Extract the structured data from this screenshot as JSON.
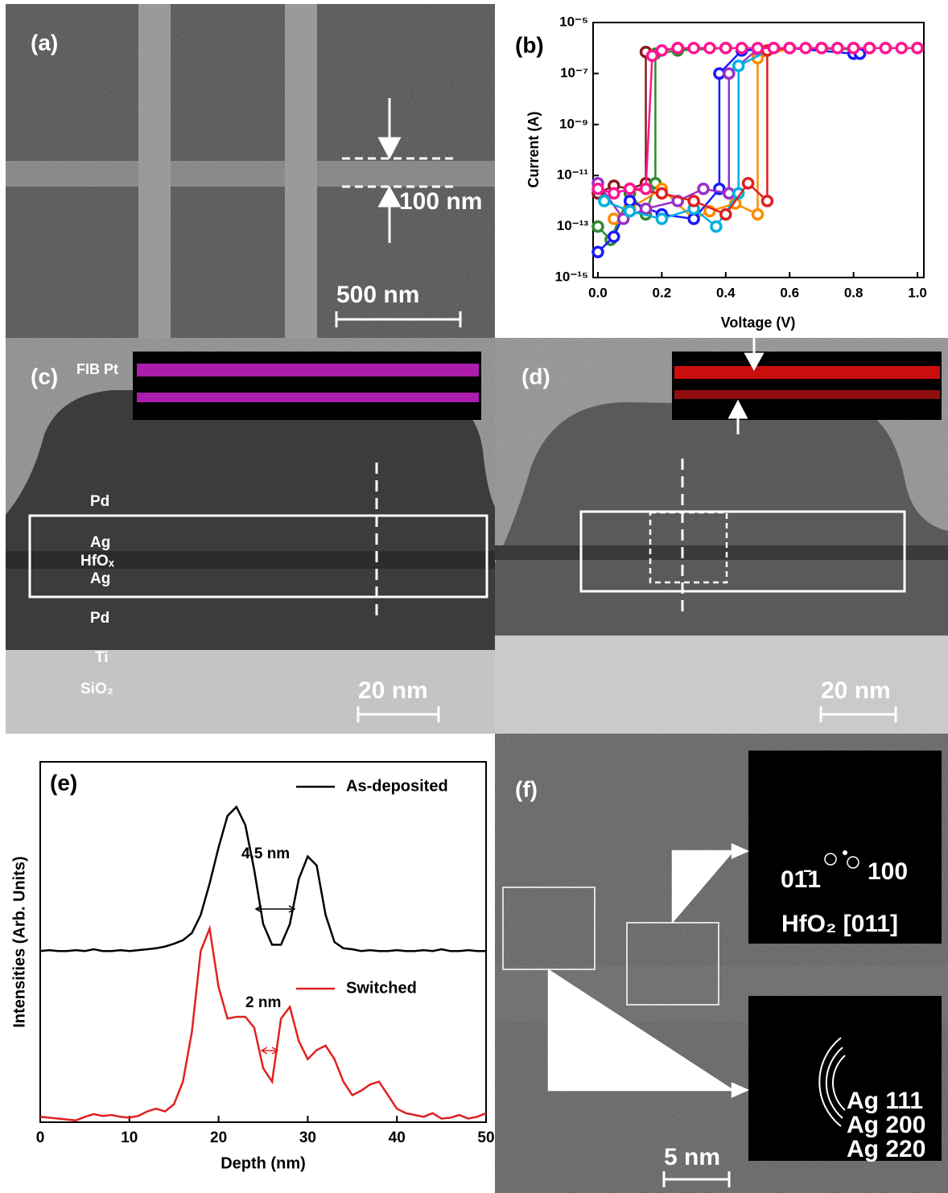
{
  "panels": {
    "a": {
      "label": "(a)",
      "width_label": "100 nm",
      "scale_label": "500 nm"
    },
    "c": {
      "label": "(c)",
      "layers": [
        "FIB Pt",
        "Pd",
        "Ag",
        "HfOₓ",
        "Ag",
        "Pd",
        "Ti",
        "SiO₂"
      ],
      "scale_label": "20 nm"
    },
    "d": {
      "label": "(d)",
      "scale_label": "20 nm"
    },
    "f": {
      "label": "(f)",
      "spot_labels": [
        "01̄1",
        "100"
      ],
      "zone_label": "HfO₂ [011]",
      "ring_labels": [
        "Ag 111",
        "Ag 200",
        "Ag 220"
      ],
      "scale_label": "5 nm"
    }
  },
  "chart_data": [
    {
      "type": "line",
      "title": "(b)",
      "x_label": "Voltage (V)",
      "y_label": "Current (A)",
      "log_y": true,
      "markers": true,
      "xlim": [
        -0.015,
        1.02
      ],
      "ylim": [
        1e-15,
        1e-05
      ],
      "xticks": [
        {
          "value": 0,
          "label": "0.0"
        },
        0.2,
        0.4,
        0.6,
        0.8,
        {
          "value": 1,
          "label": "1.0"
        }
      ],
      "yticks": [
        {
          "value": 1e-15,
          "label": "10⁻¹⁵"
        },
        {
          "value": 1e-13,
          "label": "10⁻¹³"
        },
        {
          "value": 1e-11,
          "label": "10⁻¹¹"
        },
        {
          "value": 1e-09,
          "label": "10⁻⁹"
        },
        {
          "value": 1e-07,
          "label": "10⁻⁷"
        },
        {
          "value": 1e-05,
          "label": "10⁻⁵"
        }
      ],
      "series": [
        {
          "color": "#8b1a1a",
          "x": [
            0.0,
            0.05,
            0.1,
            0.15,
            0.15,
            0.25,
            0.4,
            0.55,
            0.7,
            0.85,
            1.0
          ],
          "values": [
            2e-12,
            4e-12,
            3e-12,
            5e-12,
            7e-07,
            1e-06,
            1e-06,
            1e-06,
            1e-06,
            1e-06,
            1e-06
          ]
        },
        {
          "color": "#2e8b2e",
          "x": [
            0.0,
            0.04,
            0.1,
            0.15,
            0.18,
            0.18,
            0.25,
            0.4,
            0.6,
            0.8
          ],
          "values": [
            1e-13,
            3e-14,
            2e-12,
            3e-13,
            5e-12,
            6e-07,
            8e-07,
            1e-06,
            1e-06,
            9e-07
          ]
        },
        {
          "color": "#ff8c00",
          "x": [
            0.05,
            0.1,
            0.2,
            0.3,
            0.35,
            0.43,
            0.5,
            0.5,
            0.6,
            0.8
          ],
          "values": [
            2e-13,
            5e-13,
            3e-12,
            2e-13,
            4e-13,
            8e-13,
            3e-13,
            4e-07,
            1e-06,
            1e-06
          ]
        },
        {
          "color": "#1a1aff",
          "x": [
            0.0,
            0.05,
            0.1,
            0.2,
            0.3,
            0.38,
            0.38,
            0.45,
            0.6,
            0.8,
            0.82
          ],
          "values": [
            1e-14,
            4e-14,
            1e-12,
            3e-13,
            2e-13,
            3e-12,
            1e-07,
            8e-07,
            1e-06,
            6e-07,
            6e-07
          ]
        },
        {
          "color": "#9b30c8",
          "x": [
            0.0,
            0.08,
            0.15,
            0.25,
            0.33,
            0.41,
            0.41,
            0.5,
            0.7,
            0.9
          ],
          "values": [
            5e-12,
            2e-13,
            5e-13,
            1e-12,
            3e-12,
            2e-12,
            1e-07,
            9e-07,
            1e-06,
            1e-06
          ]
        },
        {
          "color": "#00b0e0",
          "x": [
            0.02,
            0.1,
            0.2,
            0.3,
            0.37,
            0.44,
            0.44,
            0.55,
            0.75
          ],
          "values": [
            1e-12,
            4e-13,
            2e-13,
            5e-13,
            1e-13,
            2e-12,
            2e-07,
            1e-06,
            1e-06
          ]
        },
        {
          "color": "#e02020",
          "x": [
            0.1,
            0.2,
            0.3,
            0.4,
            0.47,
            0.53,
            0.53,
            0.6,
            0.8,
            1.0
          ],
          "values": [
            3e-12,
            2e-12,
            1e-12,
            3e-13,
            5e-12,
            1e-12,
            8e-07,
            1e-06,
            1e-06,
            1e-06
          ]
        },
        {
          "color": "#ff1493",
          "x": [
            0.0,
            0.05,
            0.1,
            0.15,
            0.17,
            0.2,
            0.25,
            0.3,
            0.35,
            0.4,
            0.45,
            0.5,
            0.55,
            0.6,
            0.65,
            0.7,
            0.75,
            0.8,
            0.85,
            0.9,
            0.95,
            1.0
          ],
          "values": [
            3e-12,
            2e-12,
            3e-12,
            3e-12,
            5e-07,
            8e-07,
            1e-06,
            1e-06,
            1e-06,
            1e-06,
            1e-06,
            1e-06,
            1e-06,
            1e-06,
            1e-06,
            1e-06,
            1e-06,
            1e-06,
            1e-06,
            1e-06,
            1e-06,
            1e-06
          ]
        }
      ]
    },
    {
      "type": "line",
      "title": "(e)",
      "x_label": "Depth (nm)",
      "y_label": "Intensities (Arb. Units)",
      "log_y": false,
      "markers": false,
      "xlim": [
        0,
        50
      ],
      "ylim": [
        0,
        4
      ],
      "xticks": [
        0,
        10,
        20,
        30,
        40,
        50
      ],
      "annotations": [
        "4.5 nm",
        "2 nm"
      ],
      "x": [
        0,
        1,
        2,
        3,
        4,
        5,
        6,
        7,
        8,
        9,
        10,
        11,
        12,
        13,
        14,
        15,
        16,
        17,
        18,
        19,
        20,
        21,
        22,
        23,
        24,
        25,
        26,
        27,
        28,
        29,
        30,
        31,
        32,
        33,
        34,
        35,
        36,
        37,
        38,
        39,
        40,
        41,
        42,
        43,
        44,
        45,
        46,
        47,
        48,
        49,
        50
      ],
      "series": [
        {
          "name": "As-deposited",
          "color": "#000000",
          "values": [
            1.9,
            1.91,
            1.9,
            1.9,
            1.91,
            1.9,
            1.92,
            1.9,
            1.9,
            1.91,
            1.9,
            1.91,
            1.92,
            1.93,
            1.95,
            1.98,
            2.02,
            2.1,
            2.3,
            2.65,
            3.05,
            3.4,
            3.5,
            3.3,
            2.8,
            2.2,
            1.97,
            1.97,
            2.2,
            2.7,
            2.95,
            2.85,
            2.3,
            2.0,
            1.93,
            1.92,
            1.9,
            1.91,
            1.9,
            1.9,
            1.91,
            1.9,
            1.9,
            1.91,
            1.9,
            1.92,
            1.9,
            1.9,
            1.91,
            1.9,
            1.9
          ]
        },
        {
          "name": "Switched",
          "color": "#e02020",
          "values": [
            0.06,
            0.05,
            0.04,
            0.03,
            0.02,
            0.06,
            0.09,
            0.07,
            0.08,
            0.06,
            0.05,
            0.07,
            0.12,
            0.15,
            0.12,
            0.2,
            0.45,
            1.0,
            1.9,
            2.15,
            1.5,
            1.15,
            1.17,
            1.17,
            1.05,
            0.6,
            0.45,
            1.15,
            1.28,
            0.9,
            0.7,
            0.8,
            0.85,
            0.7,
            0.45,
            0.3,
            0.35,
            0.42,
            0.45,
            0.3,
            0.15,
            0.1,
            0.08,
            0.06,
            0.1,
            0.04,
            0.05,
            0.08,
            0.04,
            0.06,
            0.1
          ]
        }
      ]
    }
  ]
}
